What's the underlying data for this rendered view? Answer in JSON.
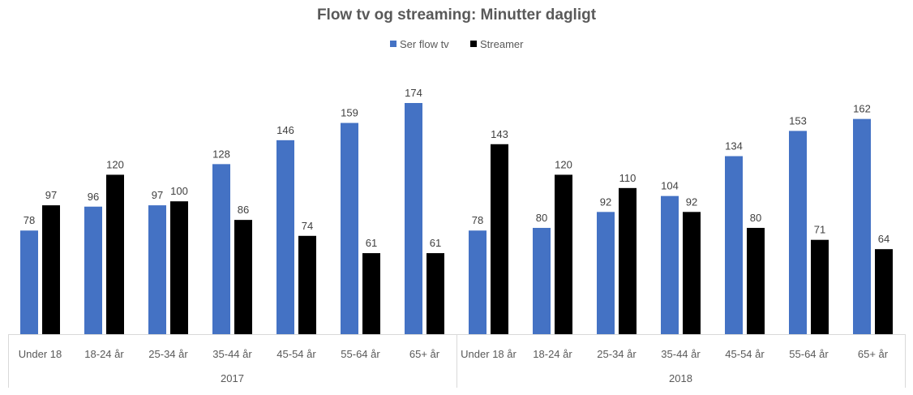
{
  "chart_data": {
    "type": "bar",
    "title": "Flow tv og streaming: Minutter dagligt",
    "xlabel": "",
    "ylabel": "",
    "ylim": [
      0,
      174
    ],
    "grid": false,
    "legend_position": "top-center",
    "groups": [
      {
        "label": "2017",
        "categories": [
          "Under 18",
          "18-24 år",
          "25-34 år",
          "35-44 år",
          "45-54 år",
          "55-64 år",
          "65+ år"
        ]
      },
      {
        "label": "2018",
        "categories": [
          "Under 18 år",
          "18-24 år",
          "25-34 år",
          "35-44 år",
          "45-54 år",
          "55-64 år",
          "65+ år"
        ]
      }
    ],
    "series": [
      {
        "name": "Ser flow tv",
        "color": "#4472C4",
        "values": [
          78,
          96,
          97,
          128,
          146,
          159,
          174,
          78,
          80,
          92,
          104,
          134,
          153,
          162
        ]
      },
      {
        "name": "Streamer",
        "color": "#000000",
        "values": [
          97,
          120,
          100,
          86,
          74,
          61,
          61,
          143,
          120,
          110,
          92,
          80,
          71,
          64
        ]
      }
    ]
  }
}
